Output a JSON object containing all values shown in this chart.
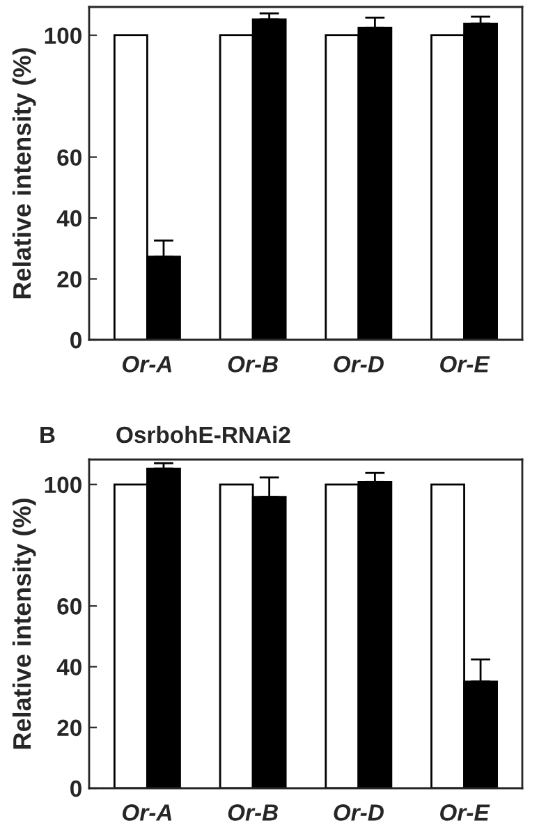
{
  "chart_data": [
    {
      "type": "bar",
      "ylabel": "Relative intensity (%)",
      "categories": [
        "Or-A",
        "Or-B",
        "Or-D",
        "Or-E"
      ],
      "ylim": [
        0,
        109.3
      ],
      "yticks": [
        0,
        20,
        40,
        60,
        100
      ],
      "series": [
        {
          "color": "#ffffff",
          "values": [
            100,
            100,
            100,
            100
          ]
        },
        {
          "color": "#000000",
          "values": [
            27.3,
            105.2,
            102.4,
            103.8
          ],
          "errors": [
            [
              27.3,
              32.6
            ],
            [
              105.2,
              107.2
            ],
            [
              102.4,
              105.8
            ],
            [
              103.8,
              106.1
            ]
          ]
        }
      ]
    },
    {
      "type": "bar",
      "title": "B",
      "subtitle": "OsrbohE-RNAi2",
      "ylabel": "Relative intensity (%)",
      "categories": [
        "Or-A",
        "Or-B",
        "Or-D",
        "Or-E"
      ],
      "ylim": [
        0,
        108.2
      ],
      "yticks": [
        0,
        20,
        40,
        60,
        100
      ],
      "series": [
        {
          "color": "#ffffff",
          "values": [
            100,
            100,
            100,
            100
          ]
        },
        {
          "color": "#000000",
          "values": [
            105.2,
            95.9,
            100.8,
            35.1
          ],
          "errors": [
            [
              105.2,
              107.0
            ],
            [
              95.9,
              102.3
            ],
            [
              100.8,
              103.8
            ],
            [
              35.1,
              42.4
            ]
          ]
        }
      ]
    }
  ]
}
